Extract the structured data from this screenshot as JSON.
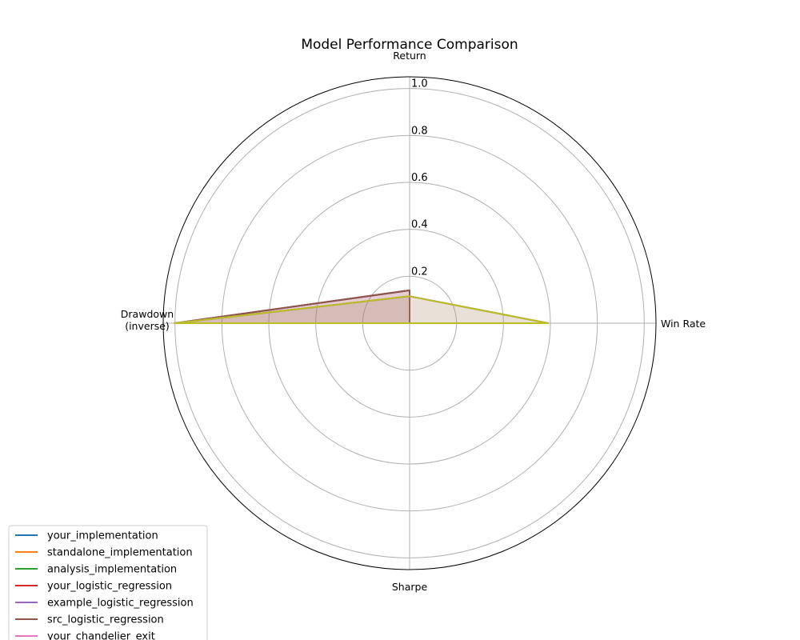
{
  "chart_data": {
    "type": "radar",
    "title": "Model Performance Comparison",
    "axes": [
      "Return",
      "Win Rate",
      "Sharpe",
      "Drawdown\n(inverse)"
    ],
    "r_ticks": [
      "0.2",
      "0.4",
      "0.6",
      "0.8",
      "1.0"
    ],
    "r_range": [
      0,
      1.05
    ],
    "grid": true,
    "legend_placement": "bottom-left",
    "series": [
      {
        "name": "your_implementation",
        "color": "#1f77b4",
        "values": [
          0.0,
          0.0,
          0.0,
          0.0
        ]
      },
      {
        "name": "standalone_implementation",
        "color": "#ff7f0e",
        "values": [
          0.0,
          0.0,
          0.0,
          0.0
        ]
      },
      {
        "name": "analysis_implementation",
        "color": "#2ca02c",
        "values": [
          0.0,
          0.0,
          0.0,
          0.0
        ]
      },
      {
        "name": "your_logistic_regression",
        "color": "#d62728",
        "values": [
          0.14,
          0.0,
          0.0,
          1.0
        ]
      },
      {
        "name": "example_logistic_regression",
        "color": "#9467bd",
        "values": [
          0.14,
          0.0,
          0.0,
          1.0
        ]
      },
      {
        "name": "src_logistic_regression",
        "color": "#8c564b",
        "values": [
          0.14,
          0.0,
          0.0,
          1.0
        ]
      },
      {
        "name": "your_chandelier_exit",
        "color": "#e377c2",
        "values": [
          0.115,
          0.59,
          0.0,
          1.0
        ]
      },
      {
        "name": "",
        "color": "#7f7f7f",
        "values": [
          0.115,
          0.59,
          0.0,
          1.0
        ]
      },
      {
        "name": "",
        "color": "#bcbd22",
        "values": [
          0.115,
          0.59,
          0.0,
          1.0
        ]
      }
    ]
  }
}
